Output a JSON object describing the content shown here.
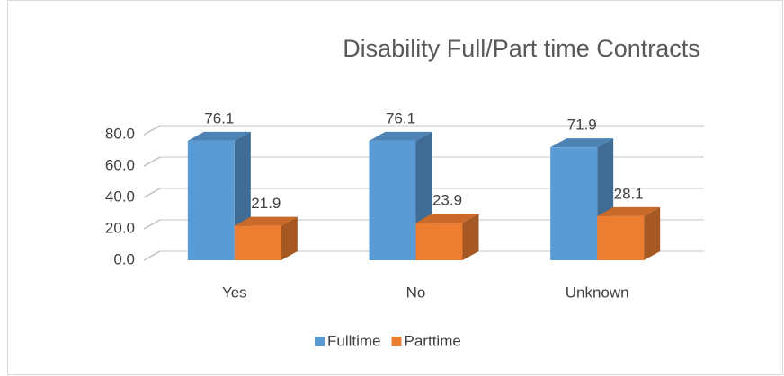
{
  "chart_data": {
    "type": "bar3d",
    "title": "Disability Full/Part time Contracts",
    "categories": [
      "Yes",
      "No",
      "Unknown"
    ],
    "series": [
      {
        "name": "Fulltime",
        "color": "#5b9bd5",
        "values": [
          76.1,
          76.1,
          71.9
        ]
      },
      {
        "name": "Parttime",
        "color": "#ed7d31",
        "values": [
          21.9,
          23.9,
          28.1
        ]
      }
    ],
    "ylim": [
      0,
      80
    ],
    "yticks": [
      {
        "value": 0,
        "label": "0.0"
      },
      {
        "value": 20,
        "label": "20.0"
      },
      {
        "value": 40,
        "label": "40.0"
      },
      {
        "value": 60,
        "label": "60.0"
      },
      {
        "value": 80,
        "label": "80.0"
      }
    ],
    "grid": true,
    "legend": "bottom"
  }
}
